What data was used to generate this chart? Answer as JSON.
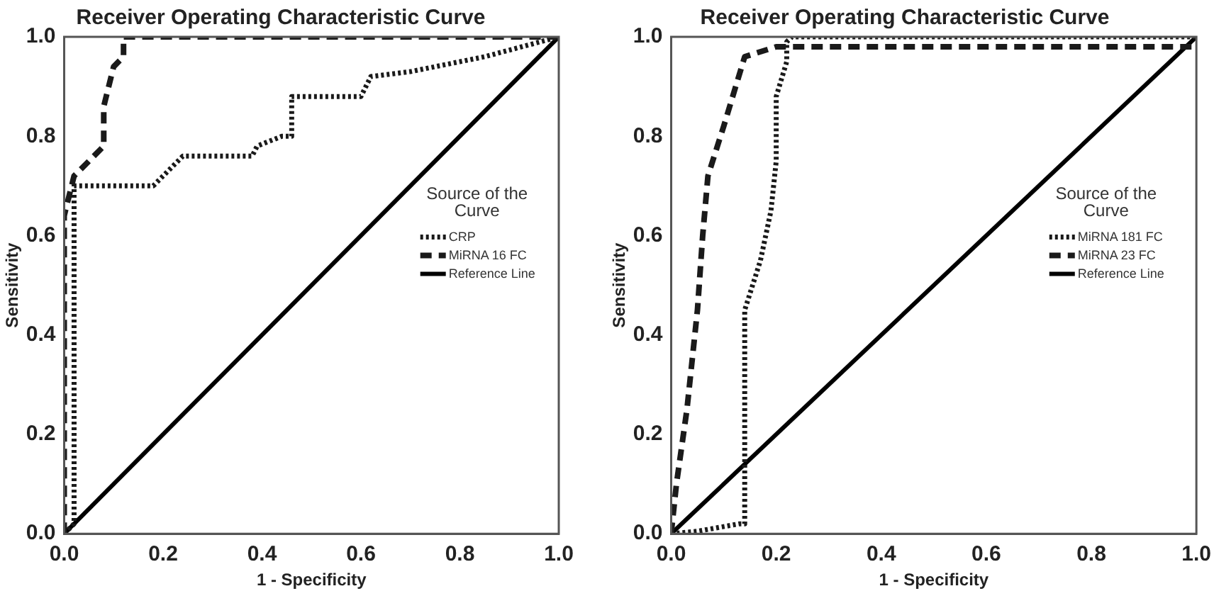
{
  "chart_data": [
    {
      "type": "line",
      "title": "Receiver Operating Characteristic Curve",
      "xlabel": "1 - Specificity",
      "ylabel": "Sensitivity",
      "legend_title": "Source of the Curve",
      "legend": "right",
      "marker": "none",
      "grid": false,
      "xlim": [
        0,
        1
      ],
      "ylim": [
        0,
        1
      ],
      "xticks": [
        {
          "value": 0,
          "label": "0.0"
        },
        {
          "value": 0.2,
          "label": "0.2"
        },
        {
          "value": 0.4,
          "label": "0.4"
        },
        {
          "value": 0.6,
          "label": "0.6"
        },
        {
          "value": 0.8,
          "label": "0.8"
        },
        {
          "value": 1,
          "label": "1.0"
        }
      ],
      "yticks": [
        {
          "value": 0,
          "label": "0.0"
        },
        {
          "value": 0.2,
          "label": "0.2"
        },
        {
          "value": 0.4,
          "label": "0.4"
        },
        {
          "value": 0.6,
          "label": "0.6"
        },
        {
          "value": 0.8,
          "label": "0.8"
        },
        {
          "value": 1,
          "label": "1.0"
        }
      ],
      "series": [
        {
          "name": "CRP",
          "color": "#1a1a1a",
          "line_style": "dotted",
          "x": [
            0,
            0.02,
            0.02,
            0.18,
            0.22,
            0.24,
            0.38,
            0.39,
            0.44,
            0.46,
            0.46,
            0.6,
            0.62,
            0.7,
            0.85,
            1
          ],
          "values": [
            0,
            0.02,
            0.7,
            0.7,
            0.74,
            0.76,
            0.76,
            0.78,
            0.8,
            0.8,
            0.88,
            0.88,
            0.92,
            0.93,
            0.96,
            1
          ]
        },
        {
          "name": "MiRNA 16 FC",
          "color": "#1a1a1a",
          "line_style": "dashed",
          "x": [
            0,
            0,
            0.02,
            0.08,
            0.08,
            0.1,
            0.12,
            0.12,
            1
          ],
          "values": [
            0,
            0.64,
            0.72,
            0.78,
            0.86,
            0.94,
            0.96,
            1,
            1
          ]
        },
        {
          "name": "Reference Line",
          "color": "#000000",
          "line_style": "solid",
          "x": [
            0,
            1
          ],
          "values": [
            0,
            1
          ]
        }
      ]
    },
    {
      "type": "line",
      "title": "Receiver Operating Characteristic Curve",
      "xlabel": "1 - Specificity",
      "ylabel": "Sensitivity",
      "legend_title": "Source of the Curve",
      "legend": "right",
      "marker": "none",
      "grid": false,
      "xlim": [
        0,
        1
      ],
      "ylim": [
        0,
        1
      ],
      "xticks": [
        {
          "value": 0,
          "label": "0.0"
        },
        {
          "value": 0.2,
          "label": "0.2"
        },
        {
          "value": 0.4,
          "label": "0.4"
        },
        {
          "value": 0.6,
          "label": "0.6"
        },
        {
          "value": 0.8,
          "label": "0.8"
        },
        {
          "value": 1,
          "label": "1.0"
        }
      ],
      "yticks": [
        {
          "value": 0,
          "label": "0.0"
        },
        {
          "value": 0.2,
          "label": "0.2"
        },
        {
          "value": 0.4,
          "label": "0.4"
        },
        {
          "value": 0.6,
          "label": "0.6"
        },
        {
          "value": 0.8,
          "label": "0.8"
        },
        {
          "value": 1,
          "label": "1.0"
        }
      ],
      "series": [
        {
          "name": "MiRNA 181 FC",
          "color": "#1a1a1a",
          "line_style": "dotted",
          "x": [
            0,
            0.05,
            0.13,
            0.14,
            0.14,
            0.17,
            0.19,
            0.2,
            0.2,
            0.22,
            0.22,
            0.23,
            1
          ],
          "values": [
            0,
            0.005,
            0.02,
            0.02,
            0.45,
            0.55,
            0.65,
            0.75,
            0.88,
            0.95,
            0.99,
            1,
            1
          ]
        },
        {
          "name": "MiRNA 23 FC",
          "color": "#1a1a1a",
          "line_style": "dashed",
          "x": [
            0,
            0.01,
            0.03,
            0.05,
            0.06,
            0.07,
            0.1,
            0.14,
            0.2,
            0.22,
            1
          ],
          "values": [
            0,
            0.1,
            0.25,
            0.45,
            0.6,
            0.72,
            0.82,
            0.96,
            0.98,
            0.98,
            0.98
          ]
        },
        {
          "name": "Reference Line",
          "color": "#000000",
          "line_style": "solid",
          "x": [
            0,
            1
          ],
          "values": [
            0,
            1
          ]
        }
      ]
    }
  ]
}
